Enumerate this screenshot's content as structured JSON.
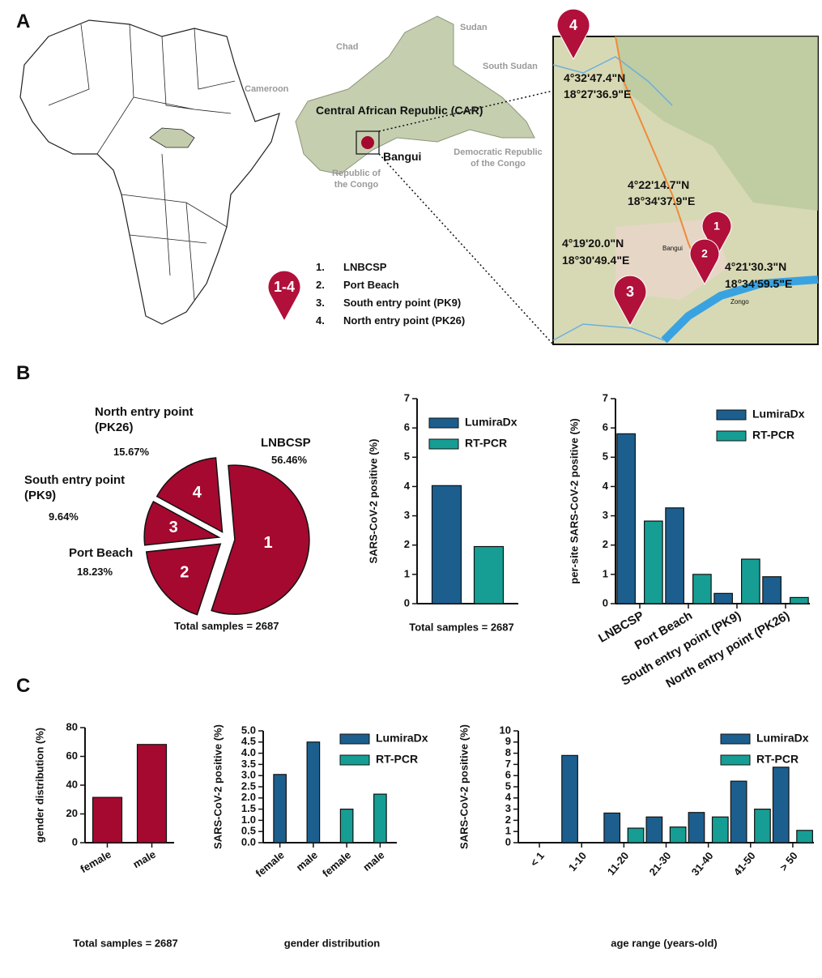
{
  "panel_labels": [
    "A",
    "B",
    "C"
  ],
  "map": {
    "countries": [
      "Chad",
      "Sudan",
      "South Sudan",
      "Cameroon",
      "Central African Republic (CAR)",
      "Bangui",
      "Democratic Republic of the Congo",
      "Republic of the Congo"
    ],
    "pin_legend": "1-4",
    "legend": [
      {
        "number": "1.",
        "label": "LNBCSP"
      },
      {
        "number": "2.",
        "label": "Port Beach"
      },
      {
        "number": "3.",
        "label": "South entry point (PK9)"
      },
      {
        "number": "4.",
        "label": "North entry point (PK26)"
      }
    ],
    "pins": [
      "1",
      "2",
      "3",
      "4"
    ],
    "inset_places": [
      "Bangui",
      "Zongo"
    ],
    "coordinates": [
      [
        "4°32'47.4\"N",
        "18°27'36.9\"E"
      ],
      [
        "4°22'14.7\"N",
        "18°34'37.9\"E"
      ],
      [
        "4°19'20.0\"N",
        "18°30'49.4\"E"
      ],
      [
        "4°21'30.3\"N",
        "18°34'59.5\"E"
      ]
    ]
  },
  "chart_data": [
    {
      "type": "pie",
      "categories": [
        "LNBCSP",
        "Port Beach",
        "South entry point (PK9)",
        "North entry point (PK26)"
      ],
      "values": [
        56.46,
        18.23,
        9.64,
        15.67
      ],
      "value_labels": [
        "56.46%",
        "18.23%",
        "9.64%",
        "15.67%"
      ],
      "slice_labels": [
        "1",
        "2",
        "3",
        "4"
      ],
      "color": "#a5092f",
      "caption": "Total samples = 2687"
    },
    {
      "type": "bar",
      "categories": [
        null
      ],
      "ylabel": "SARS-CoV-2 positive (%)",
      "xlabel": "Total  samples = 2687",
      "series": [
        {
          "name": "LumiraDx",
          "color": "#1c5f8e",
          "values": [
            4.03
          ]
        },
        {
          "name": "RT-PCR",
          "color": "#169e94",
          "values": [
            1.95
          ]
        }
      ],
      "ylim": [
        0,
        7
      ],
      "yticks": [
        0,
        1,
        2,
        3,
        4,
        5,
        6,
        7
      ],
      "legend": "upper right"
    },
    {
      "type": "bar",
      "categories": [
        "LNBCSP",
        "Port Beach",
        "South entry point (PK9)",
        "North entry point (PK26)"
      ],
      "ylabel": "per-site SARS-CoV-2 positive (%)",
      "series": [
        {
          "name": "LumiraDx",
          "color": "#1c5f8e",
          "values": [
            5.8,
            3.27,
            0.35,
            0.92
          ]
        },
        {
          "name": "RT-PCR",
          "color": "#169e94",
          "values": [
            2.82,
            1.0,
            1.52,
            0.21
          ]
        }
      ],
      "ylim": [
        0,
        7
      ],
      "yticks": [
        0,
        1,
        2,
        3,
        4,
        5,
        6,
        7
      ],
      "legend": "upper right"
    },
    {
      "type": "bar",
      "categories": [
        "female",
        "male"
      ],
      "ylabel": "gender distribution (%)",
      "xlabel": "Total  samples = 2687",
      "series": [
        {
          "color": "#a5092f",
          "values": [
            31.5,
            68.3
          ]
        }
      ],
      "ylim": [
        0,
        80
      ],
      "yticks": [
        0,
        20,
        40,
        60,
        80
      ]
    },
    {
      "type": "bar",
      "categories": [
        "female",
        "male",
        "female",
        "male"
      ],
      "ylabel": "SARS-CoV-2 positive (%)",
      "xlabel": "gender distribution",
      "series": [
        {
          "name": "LumiraDx",
          "color": "#1c5f8e",
          "values": [
            3.05,
            4.5,
            null,
            null
          ]
        },
        {
          "name": "RT-PCR",
          "color": "#169e94",
          "values": [
            null,
            null,
            1.5,
            2.17
          ]
        }
      ],
      "ylim": [
        0,
        5
      ],
      "yticks": [
        {
          "value": 0,
          "label": "0.0"
        },
        0.5,
        {
          "value": 1,
          "label": "1.0"
        },
        1.5,
        {
          "value": 2,
          "label": "2.0"
        },
        2.5,
        {
          "value": 3,
          "label": "3.0"
        },
        3.5,
        {
          "value": 4,
          "label": "4.0"
        },
        4.5,
        {
          "value": 5,
          "label": "5.0"
        }
      ],
      "legend": "upper right"
    },
    {
      "type": "bar",
      "categories": [
        "< 1",
        "1-10",
        "11-20",
        "21-30",
        "31-40",
        "41-50",
        "> 50"
      ],
      "ylabel": "SARS-CoV-2 positive (%)",
      "xlabel": "age range (years-old)",
      "series": [
        {
          "name": "LumiraDx",
          "color": "#1c5f8e",
          "values": [
            0,
            7.8,
            2.65,
            2.3,
            2.7,
            5.5,
            6.75
          ]
        },
        {
          "name": "RT-PCR",
          "color": "#169e94",
          "values": [
            0,
            0,
            1.3,
            1.4,
            2.3,
            3.0,
            1.1
          ]
        }
      ],
      "ylim": [
        0,
        10
      ],
      "yticks": [
        0,
        1,
        2,
        3,
        4,
        5,
        6,
        7,
        8,
        9,
        10
      ],
      "legend": "upper right"
    }
  ]
}
